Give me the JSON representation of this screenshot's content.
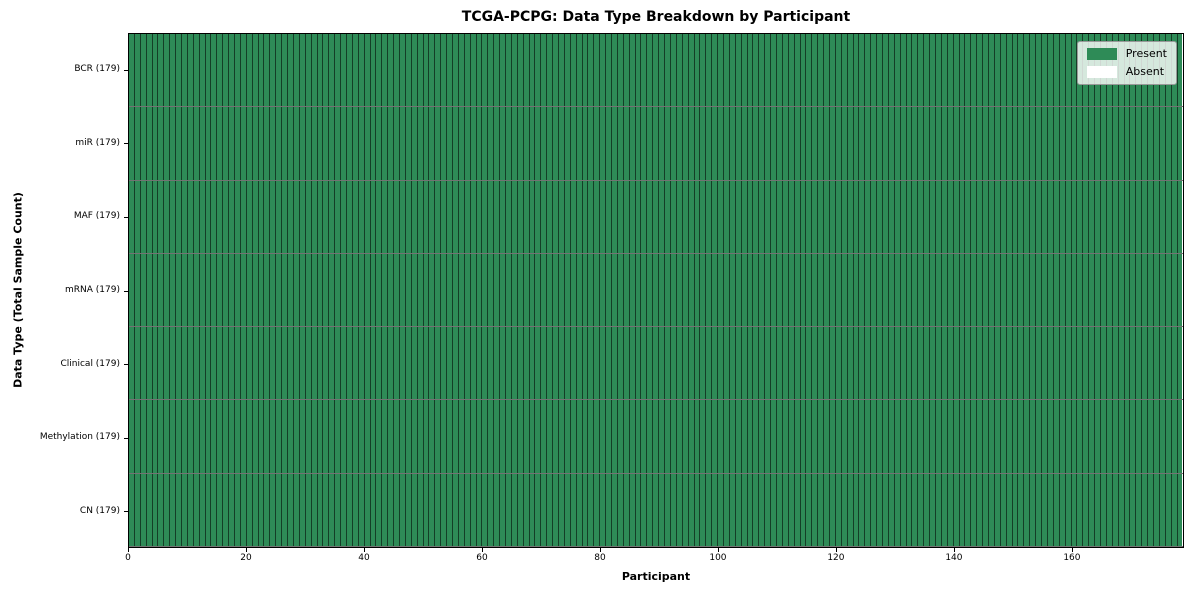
{
  "chart_data": {
    "type": "heatmap",
    "title": "TCGA-PCPG: Data Type Breakdown by Participant",
    "xlabel": "Participant",
    "ylabel": "Data Type (Total Sample Count)",
    "n_participants": 179,
    "xlim": [
      0,
      179
    ],
    "x_ticks": [
      0,
      20,
      40,
      60,
      80,
      100,
      120,
      140,
      160
    ],
    "rows": [
      {
        "name": "BCR",
        "label": "BCR (179)",
        "total_samples": 179,
        "present_count": 179,
        "absent_count": 0
      },
      {
        "name": "miR",
        "label": "miR (179)",
        "total_samples": 179,
        "present_count": 179,
        "absent_count": 0
      },
      {
        "name": "MAF",
        "label": "MAF (179)",
        "total_samples": 179,
        "present_count": 179,
        "absent_count": 0
      },
      {
        "name": "mRNA",
        "label": "mRNA (179)",
        "total_samples": 179,
        "present_count": 179,
        "absent_count": 0
      },
      {
        "name": "Clinical",
        "label": "Clinical (179)",
        "total_samples": 179,
        "present_count": 179,
        "absent_count": 0
      },
      {
        "name": "Methylation",
        "label": "Methylation (179)",
        "total_samples": 179,
        "present_count": 179,
        "absent_count": 0
      },
      {
        "name": "CN",
        "label": "CN (179)",
        "total_samples": 179,
        "present_count": 179,
        "absent_count": 0
      }
    ],
    "all_present": true,
    "legend": [
      {
        "label": "Present",
        "color": "#2e8b57"
      },
      {
        "label": "Absent",
        "color": "#ffffff"
      }
    ],
    "legend_position": "upper-right",
    "colors": {
      "present": "#2e8b57",
      "absent": "#ffffff",
      "grid_line": "rgba(0,0,0,0.55)",
      "spine": "#000000",
      "legend_bg": "rgba(255,255,255,0.8)",
      "legend_border": "#999999"
    }
  }
}
